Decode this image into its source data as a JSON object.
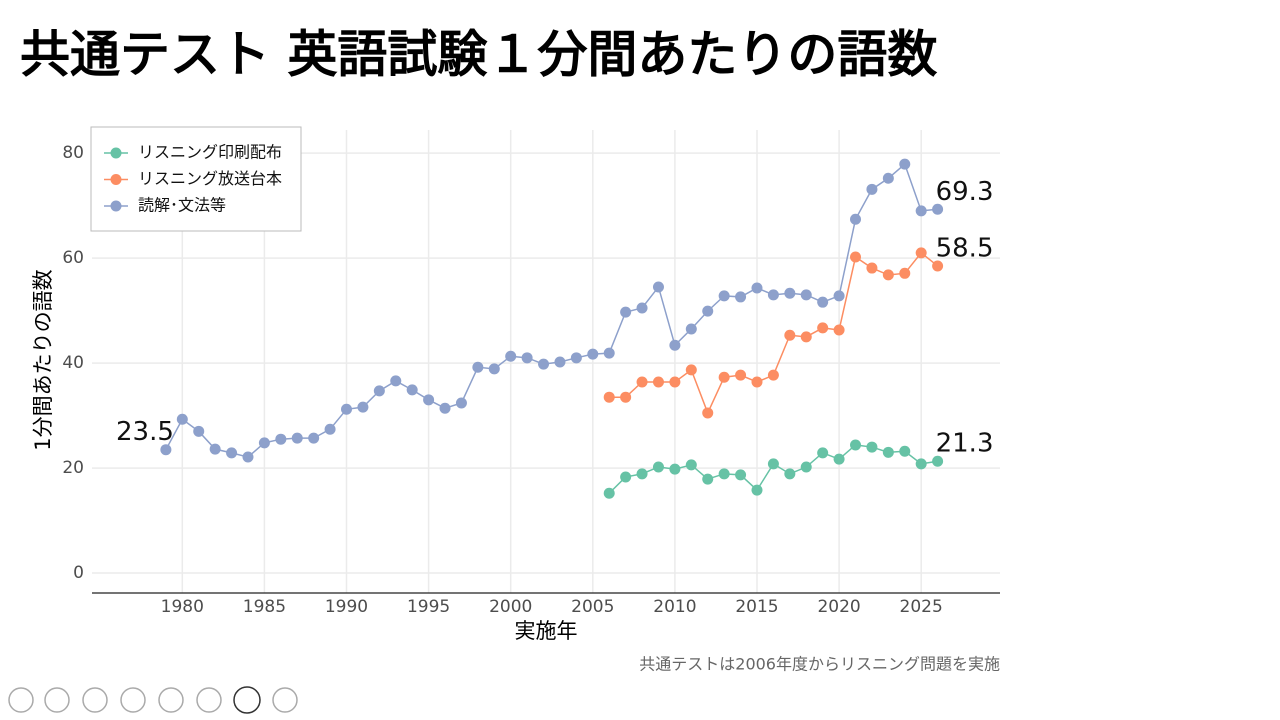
{
  "chart_data": {
    "type": "line",
    "title": "共通テスト 英語試験１分間あたりの語数",
    "x_label": "実施年",
    "y_label": "1分間あたりの語数",
    "caption": "共通テストは2006年度からリスニング問題を実施",
    "x": [
      1979,
      1980,
      1981,
      1982,
      1983,
      1984,
      1985,
      1986,
      1987,
      1988,
      1989,
      1990,
      1991,
      1992,
      1993,
      1994,
      1995,
      1996,
      1997,
      1998,
      1999,
      2000,
      2001,
      2002,
      2003,
      2004,
      2005,
      2006,
      2007,
      2008,
      2009,
      2010,
      2011,
      2012,
      2013,
      2014,
      2015,
      2016,
      2017,
      2018,
      2019,
      2020,
      2021,
      2022,
      2023,
      2024,
      2025,
      2026
    ],
    "series": [
      {
        "name": "リスニング印刷配布",
        "color": "#66c2a5",
        "values": [
          null,
          null,
          null,
          null,
          null,
          null,
          null,
          null,
          null,
          null,
          null,
          null,
          null,
          null,
          null,
          null,
          null,
          null,
          null,
          null,
          null,
          null,
          null,
          null,
          null,
          null,
          null,
          15.2,
          18.3,
          18.9,
          20.2,
          19.8,
          20.6,
          17.9,
          18.9,
          18.7,
          15.8,
          20.8,
          18.9,
          20.2,
          22.9,
          21.7,
          24.4,
          24.0,
          23.0,
          23.2,
          20.8,
          21.3
        ]
      },
      {
        "name": "リスニング放送台本",
        "color": "#fc8d62",
        "values": [
          null,
          null,
          null,
          null,
          null,
          null,
          null,
          null,
          null,
          null,
          null,
          null,
          null,
          null,
          null,
          null,
          null,
          null,
          null,
          null,
          null,
          null,
          null,
          null,
          null,
          null,
          null,
          33.5,
          33.5,
          36.4,
          36.4,
          36.4,
          38.7,
          30.5,
          37.3,
          37.7,
          36.4,
          37.7,
          45.3,
          45.0,
          46.7,
          46.3,
          60.2,
          58.1,
          56.8,
          57.1,
          61.0,
          58.5
        ]
      },
      {
        "name": "読解･文法等",
        "color": "#8da0cb",
        "values": [
          23.5,
          29.3,
          27.0,
          23.6,
          22.9,
          22.1,
          24.8,
          25.5,
          25.7,
          25.7,
          27.4,
          31.2,
          31.6,
          34.7,
          36.6,
          34.9,
          33.0,
          31.4,
          32.4,
          39.2,
          38.9,
          41.3,
          41.0,
          39.8,
          40.2,
          41.0,
          41.7,
          41.9,
          49.7,
          50.5,
          54.5,
          43.4,
          46.5,
          49.9,
          52.8,
          52.6,
          54.3,
          53.0,
          53.3,
          53.0,
          51.6,
          52.8,
          67.4,
          73.1,
          75.2,
          77.9,
          69.0,
          69.3
        ]
      }
    ],
    "annotations": [
      {
        "x": 1979,
        "y": 23.5,
        "label": "23.5"
      },
      {
        "x": 2026,
        "y": 69.3,
        "label": "69.3"
      },
      {
        "x": 2026,
        "y": 58.5,
        "label": "58.5"
      },
      {
        "x": 2026,
        "y": 21.3,
        "label": "21.3"
      }
    ],
    "xlim": [
      1974.5,
      2029.8
    ],
    "ylim": [
      -3.8,
      84.4
    ],
    "xticks": [
      1980,
      1985,
      1990,
      1995,
      2000,
      2005,
      2010,
      2015,
      2020,
      2025
    ],
    "yticks": [
      0,
      20,
      40,
      60,
      80
    ],
    "grid": true,
    "legend": "top-left"
  }
}
